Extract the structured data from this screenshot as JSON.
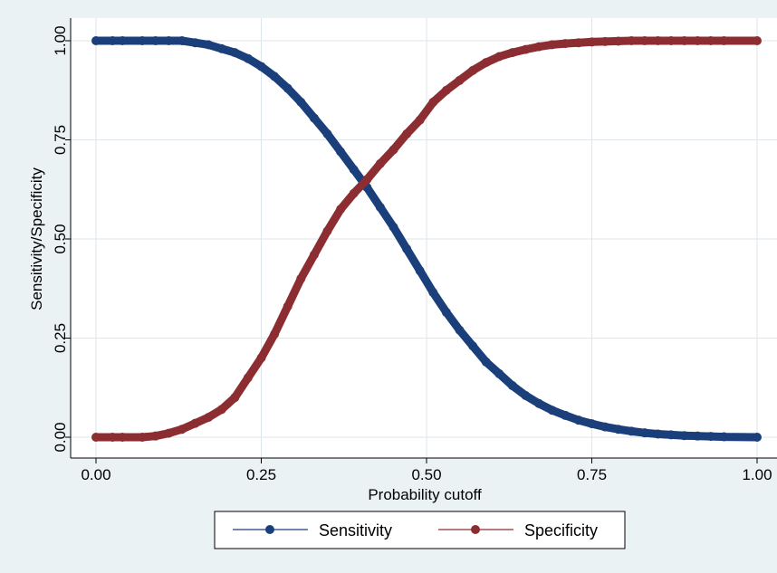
{
  "chart_data": {
    "type": "line",
    "title": "",
    "xlabel": "Probability cutoff",
    "ylabel": "Sensitivity/Specificity",
    "xlim": [
      0,
      1
    ],
    "ylim": [
      0,
      1
    ],
    "x_ticks": [
      "0.00",
      "0.25",
      "0.50",
      "0.75",
      "1.00"
    ],
    "y_ticks": [
      "0.00",
      "0.25",
      "0.50",
      "0.75",
      "1.00"
    ],
    "grid": true,
    "legend_position": "bottom",
    "background_color": "#eaf2f3",
    "plot_background_color": "#ffffff",
    "series": [
      {
        "name": "Sensitivity",
        "color": "#1a3f7a",
        "x": [
          0.0,
          0.025,
          0.04,
          0.07,
          0.09,
          0.11,
          0.13,
          0.15,
          0.17,
          0.19,
          0.21,
          0.23,
          0.25,
          0.27,
          0.29,
          0.31,
          0.33,
          0.35,
          0.37,
          0.39,
          0.41,
          0.43,
          0.45,
          0.47,
          0.49,
          0.51,
          0.53,
          0.55,
          0.57,
          0.59,
          0.61,
          0.63,
          0.65,
          0.67,
          0.69,
          0.71,
          0.73,
          0.75,
          0.77,
          0.79,
          0.81,
          0.83,
          0.85,
          0.87,
          0.89,
          0.91,
          0.93,
          0.95,
          1.0
        ],
        "y": [
          1.0,
          1.0,
          1.0,
          1.0,
          1.0,
          1.0,
          1.0,
          0.995,
          0.99,
          0.98,
          0.97,
          0.955,
          0.935,
          0.91,
          0.88,
          0.845,
          0.805,
          0.765,
          0.72,
          0.675,
          0.63,
          0.58,
          0.53,
          0.475,
          0.42,
          0.365,
          0.315,
          0.27,
          0.23,
          0.19,
          0.16,
          0.13,
          0.105,
          0.085,
          0.068,
          0.055,
          0.043,
          0.034,
          0.026,
          0.02,
          0.015,
          0.011,
          0.008,
          0.006,
          0.004,
          0.003,
          0.002,
          0.001,
          0.0
        ]
      },
      {
        "name": "Specificity",
        "color": "#8c2d32",
        "x": [
          0.0,
          0.025,
          0.04,
          0.07,
          0.09,
          0.11,
          0.13,
          0.15,
          0.17,
          0.19,
          0.21,
          0.23,
          0.25,
          0.27,
          0.29,
          0.31,
          0.33,
          0.35,
          0.37,
          0.39,
          0.41,
          0.43,
          0.45,
          0.47,
          0.49,
          0.51,
          0.53,
          0.55,
          0.57,
          0.59,
          0.61,
          0.63,
          0.65,
          0.67,
          0.69,
          0.71,
          0.73,
          0.75,
          0.77,
          0.79,
          0.81,
          0.83,
          0.85,
          0.87,
          0.89,
          0.91,
          0.93,
          0.95,
          1.0
        ],
        "y": [
          0.0,
          0.0,
          0.0,
          0.0,
          0.003,
          0.01,
          0.02,
          0.035,
          0.05,
          0.07,
          0.1,
          0.15,
          0.2,
          0.26,
          0.33,
          0.4,
          0.46,
          0.52,
          0.575,
          0.615,
          0.65,
          0.69,
          0.725,
          0.765,
          0.8,
          0.845,
          0.875,
          0.9,
          0.925,
          0.945,
          0.96,
          0.97,
          0.978,
          0.985,
          0.99,
          0.993,
          0.995,
          0.997,
          0.998,
          0.999,
          1.0,
          1.0,
          1.0,
          1.0,
          1.0,
          1.0,
          1.0,
          1.0,
          1.0
        ]
      }
    ]
  }
}
